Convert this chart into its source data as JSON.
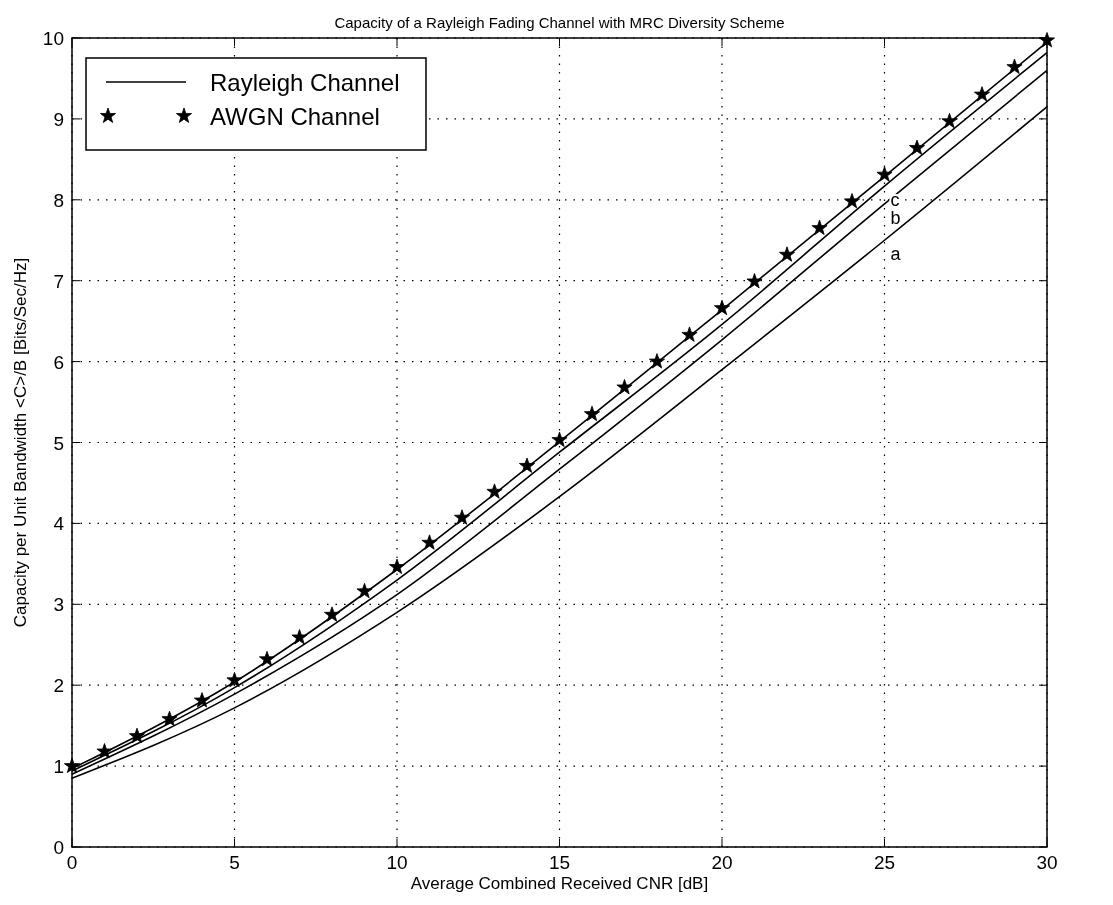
{
  "chart_data": {
    "type": "line",
    "title": "Capacity of a Rayleigh Fading Channel with MRC Diversity Scheme",
    "xlabel": "Average Combined Received CNR [dB]",
    "ylabel": "Capacity per Unit Bandwidth <C>/B [Bits/Sec/Hz]",
    "x": [
      0,
      5,
      10,
      15,
      20,
      25,
      30
    ],
    "series": [
      {
        "name": "Rayleigh Channel",
        "color": "#000000",
        "values": [
          0.85,
          1.72,
          2.9,
          4.33,
          5.9,
          7.5,
          9.15
        ]
      },
      {
        "color": "#000000",
        "values": [
          0.9,
          1.89,
          3.12,
          4.67,
          6.27,
          7.95,
          9.6
        ]
      },
      {
        "color": "#000000",
        "values": [
          0.94,
          1.97,
          3.3,
          4.88,
          6.46,
          8.17,
          9.82
        ]
      },
      {
        "color": "#000000",
        "values": [
          0.97,
          2.04,
          3.43,
          5.01,
          6.64,
          8.29,
          9.95
        ]
      },
      {
        "name": "AWGN Channel",
        "type": "scatter",
        "marker": "star",
        "color": "#000000",
        "x": [
          0,
          1,
          2,
          3,
          4,
          5,
          6,
          7,
          8,
          9,
          10,
          11,
          12,
          13,
          14,
          15,
          16,
          17,
          18,
          19,
          20,
          21,
          22,
          23,
          24,
          25,
          26,
          27,
          28,
          29,
          30
        ],
        "values": [
          1.0,
          1.18,
          1.37,
          1.58,
          1.81,
          2.06,
          2.32,
          2.59,
          2.87,
          3.16,
          3.46,
          3.76,
          4.07,
          4.39,
          4.71,
          5.03,
          5.35,
          5.68,
          6.0,
          6.33,
          6.66,
          6.99,
          7.32,
          7.65,
          7.98,
          8.31,
          8.64,
          8.97,
          9.3,
          9.64,
          9.97
        ]
      }
    ],
    "annotations": [
      "a",
      "b",
      "c"
    ],
    "xlim": [
      0,
      30
    ],
    "ylim": [
      0,
      10
    ],
    "xticks": [
      0,
      5,
      10,
      15,
      20,
      25,
      30
    ],
    "yticks": [
      0,
      1,
      2,
      3,
      4,
      5,
      6,
      7,
      8,
      9,
      10
    ],
    "grid": true,
    "legend": "top left"
  }
}
